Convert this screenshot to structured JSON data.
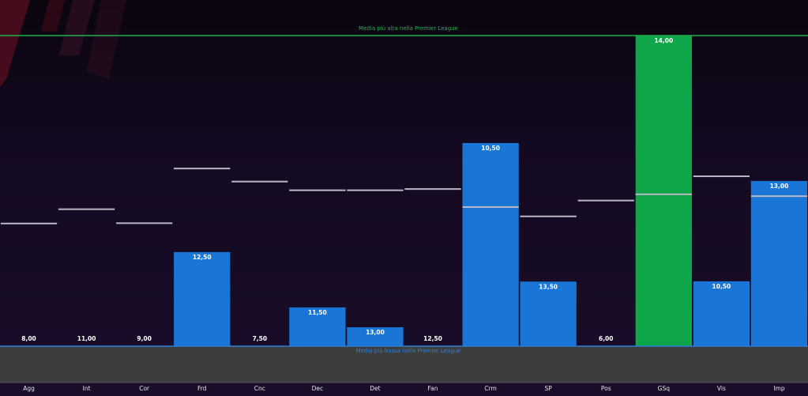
{
  "chart_data": {
    "type": "bar",
    "categories": [
      "Agg",
      "Int",
      "Cor",
      "Frd",
      "Cnc",
      "Dec",
      "Det",
      "Fan",
      "Crm",
      "SP",
      "Pos",
      "GSq",
      "Vis",
      "Imp"
    ],
    "values": [
      8.0,
      11.0,
      9.0,
      12.5,
      7.5,
      11.5,
      13.0,
      12.5,
      10.5,
      13.5,
      6.0,
      14.0,
      10.5,
      13.0
    ],
    "value_labels": [
      "8,00",
      "11,00",
      "9,00",
      "12,50",
      "7,50",
      "11,50",
      "13,00",
      "12,50",
      "10,50",
      "13,50",
      "6,00",
      "14,00",
      "10,50",
      "13,00"
    ],
    "bar_fill_fraction": [
      0.0,
      0.0,
      0.0,
      0.303,
      0.0,
      0.125,
      0.061,
      0.0,
      0.654,
      0.208,
      0.0,
      1.0,
      0.209,
      0.532
    ],
    "average_marker_fraction": [
      0.395,
      0.441,
      0.396,
      0.572,
      0.53,
      0.502,
      0.502,
      0.506,
      0.448,
      0.418,
      0.469,
      0.489,
      0.547,
      0.483
    ],
    "highest_value_category": "GSq",
    "grid": false,
    "colors": {
      "bar": "#1976d6",
      "highlight_bar": "#0fa64a",
      "marker": "#b9b9c4",
      "top_line": "#21b04b",
      "bottom_line": "#2c7fd6",
      "bottom_band": "#3d3d3d",
      "value_text": "#ffffff",
      "tick_text": "#e6e6e6"
    },
    "top_line_label": "Media più alta nella Premier League",
    "bottom_line_label": "Media più bassa nella Premier League"
  }
}
